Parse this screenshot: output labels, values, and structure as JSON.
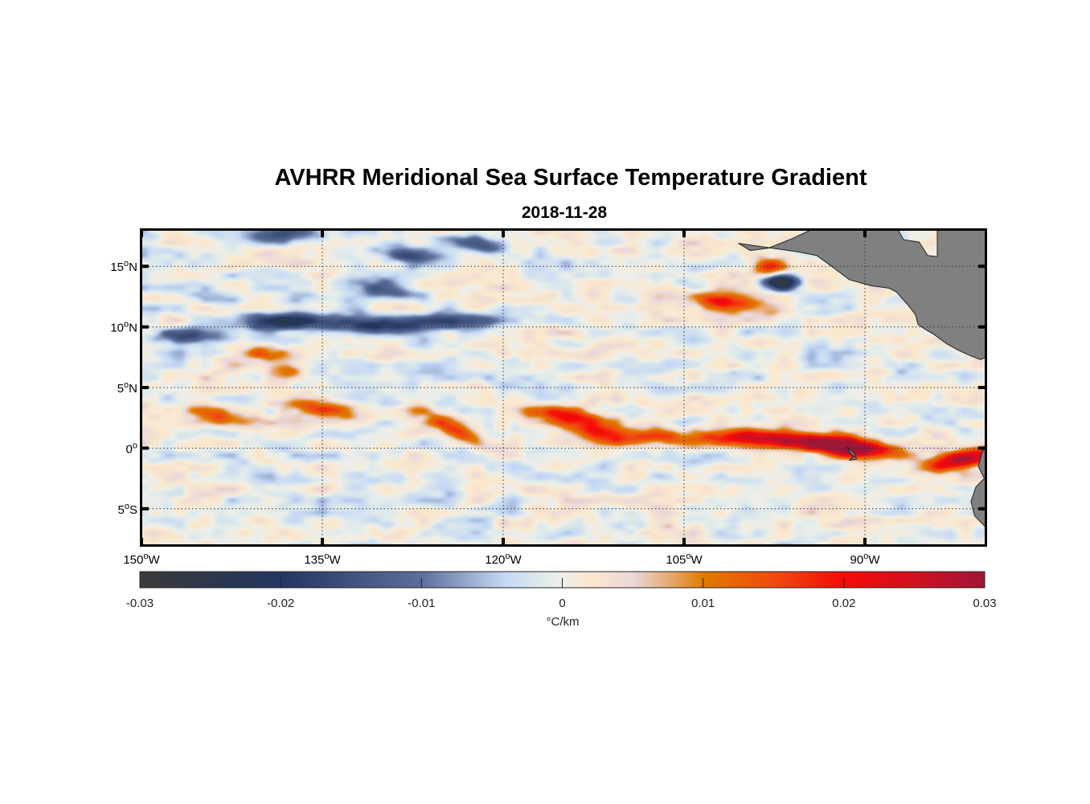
{
  "chart_data": {
    "type": "heatmap",
    "title": "AVHRR Meridional Sea Surface Temperature Gradient",
    "subtitle": "2018-11-28",
    "xlabel": "",
    "ylabel": "",
    "xlim": [
      -150,
      -80
    ],
    "ylim": [
      -8,
      18
    ],
    "grid": true,
    "x_ticks": [
      {
        "value": -150,
        "deg": "150",
        "hemi": "W"
      },
      {
        "value": -135,
        "deg": "135",
        "hemi": "W"
      },
      {
        "value": -120,
        "deg": "120",
        "hemi": "W"
      },
      {
        "value": -105,
        "deg": "105",
        "hemi": "W"
      },
      {
        "value": -90,
        "deg": "90",
        "hemi": "W"
      }
    ],
    "y_ticks": [
      {
        "value": 15,
        "deg": "15",
        "hemi": "N"
      },
      {
        "value": 10,
        "deg": "10",
        "hemi": "N"
      },
      {
        "value": 5,
        "deg": "5",
        "hemi": "N"
      },
      {
        "value": 0,
        "deg": "0",
        "hemi": ""
      },
      {
        "value": -5,
        "deg": "5",
        "hemi": "S"
      }
    ],
    "degree_symbol": "o",
    "colorbar": {
      "range": [
        -0.03,
        0.03
      ],
      "ticks": [
        "-0.03",
        "-0.02",
        "-0.01",
        "0",
        "0.01",
        "0.02",
        "0.03"
      ],
      "tick_values": [
        -0.03,
        -0.02,
        -0.01,
        0,
        0.01,
        0.02,
        0.03
      ],
      "label": "°C/km",
      "location": "bottom",
      "colormap": [
        {
          "v": -0.03,
          "color": "#3a3a3a"
        },
        {
          "v": -0.02,
          "color": "#223660"
        },
        {
          "v": -0.01,
          "color": "#5b6f9a"
        },
        {
          "v": -0.004,
          "color": "#c6d9f5"
        },
        {
          "v": -0.001,
          "color": "#e3ece9"
        },
        {
          "v": 0.0,
          "color": "#eeeeea"
        },
        {
          "v": 0.002,
          "color": "#fbe8cc"
        },
        {
          "v": 0.005,
          "color": "#ead8da"
        },
        {
          "v": 0.008,
          "color": "#e6a360"
        },
        {
          "v": 0.01,
          "color": "#e07a00"
        },
        {
          "v": 0.015,
          "color": "#f04a10"
        },
        {
          "v": 0.02,
          "color": "#f60a08"
        },
        {
          "v": 0.025,
          "color": "#d21020"
        },
        {
          "v": 0.03,
          "color": "#9e1638"
        }
      ]
    },
    "features": [
      {
        "lon": -146,
        "lat": 9.2,
        "value": -0.016
      },
      {
        "lon": -138,
        "lat": 10.5,
        "value": -0.018
      },
      {
        "lon": -131,
        "lat": 10.2,
        "value": -0.02
      },
      {
        "lon": -124,
        "lat": 10.5,
        "value": -0.017
      },
      {
        "lon": -130,
        "lat": 13.2,
        "value": -0.016
      },
      {
        "lon": -128,
        "lat": 16.0,
        "value": -0.016
      },
      {
        "lon": -122,
        "lat": 16.8,
        "value": -0.016
      },
      {
        "lon": -138,
        "lat": 17.6,
        "value": -0.015
      },
      {
        "lon": -97,
        "lat": 13.7,
        "value": -0.03
      },
      {
        "lon": -140,
        "lat": 7.8,
        "value": 0.011
      },
      {
        "lon": -138,
        "lat": 6.4,
        "value": 0.013
      },
      {
        "lon": -144,
        "lat": 2.8,
        "value": 0.012
      },
      {
        "lon": -135,
        "lat": 3.3,
        "value": 0.014
      },
      {
        "lon": -124,
        "lat": 1.5,
        "value": 0.014
      },
      {
        "lon": -115,
        "lat": 2.7,
        "value": 0.016
      },
      {
        "lon": -112,
        "lat": 1.2,
        "value": 0.013
      },
      {
        "lon": -108,
        "lat": 1.0,
        "value": 0.014
      },
      {
        "lon": -101,
        "lat": 0.9,
        "value": 0.017
      },
      {
        "lon": -95,
        "lat": 0.6,
        "value": 0.02
      },
      {
        "lon": -91,
        "lat": 0.0,
        "value": 0.028
      },
      {
        "lon": -82,
        "lat": -0.9,
        "value": 0.027
      },
      {
        "lon": -101,
        "lat": 12.0,
        "value": 0.017
      },
      {
        "lon": -98,
        "lat": 15.0,
        "value": 0.02
      }
    ]
  }
}
